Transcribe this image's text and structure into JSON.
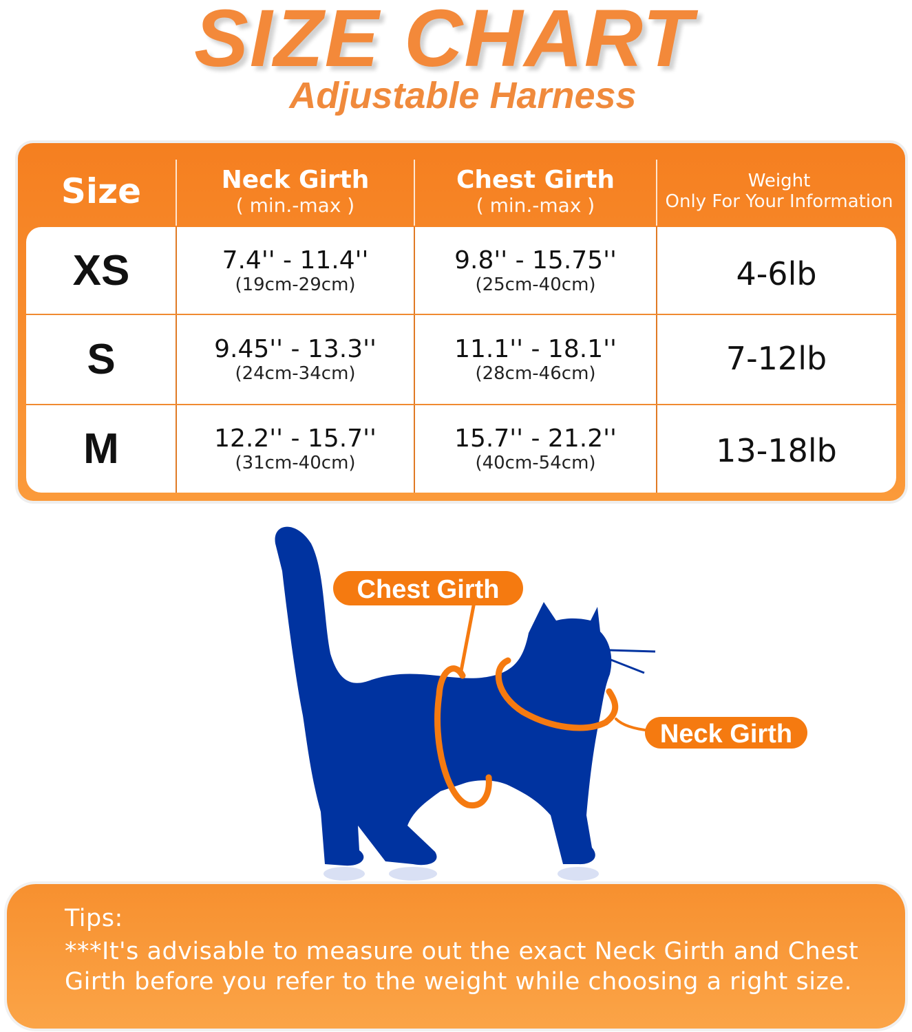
{
  "title": "SIZE CHART",
  "subtitle": "Adjustable Harness",
  "table": {
    "headers": [
      {
        "main": "Size",
        "sub": ""
      },
      {
        "main": "Neck Girth",
        "sub": "( min.-max )"
      },
      {
        "main": "Chest Girth",
        "sub": "( min.-max )"
      },
      {
        "main": "Weight",
        "sub": "Only For Your Information"
      }
    ],
    "rows": [
      {
        "size": "XS",
        "neck_in": "7.4'' - 11.4''",
        "neck_cm": "(19cm-29cm)",
        "chest_in": "9.8'' - 15.75''",
        "chest_cm": "(25cm-40cm)",
        "weight": "4-6lb"
      },
      {
        "size": "S",
        "neck_in": "9.45'' - 13.3''",
        "neck_cm": "(24cm-34cm)",
        "chest_in": "11.1'' - 18.1''",
        "chest_cm": "(28cm-46cm)",
        "weight": "7-12lb"
      },
      {
        "size": "M",
        "neck_in": "12.2'' - 15.7''",
        "neck_cm": "(31cm-40cm)",
        "chest_in": "15.7'' - 21.2''",
        "chest_cm": "(40cm-54cm)",
        "weight": "13-18lb"
      }
    ]
  },
  "diagram": {
    "chest_label": "Chest Girth",
    "neck_label": "Neck Girth",
    "cat_color": "#0033a0",
    "accent": "#f57a10"
  },
  "tips": {
    "heading": "Tips:",
    "line1": "***It's advisable to measure out the exact Neck Girth and Chest",
    "line2": "Girth before you refer to the weight while choosing a right size."
  }
}
